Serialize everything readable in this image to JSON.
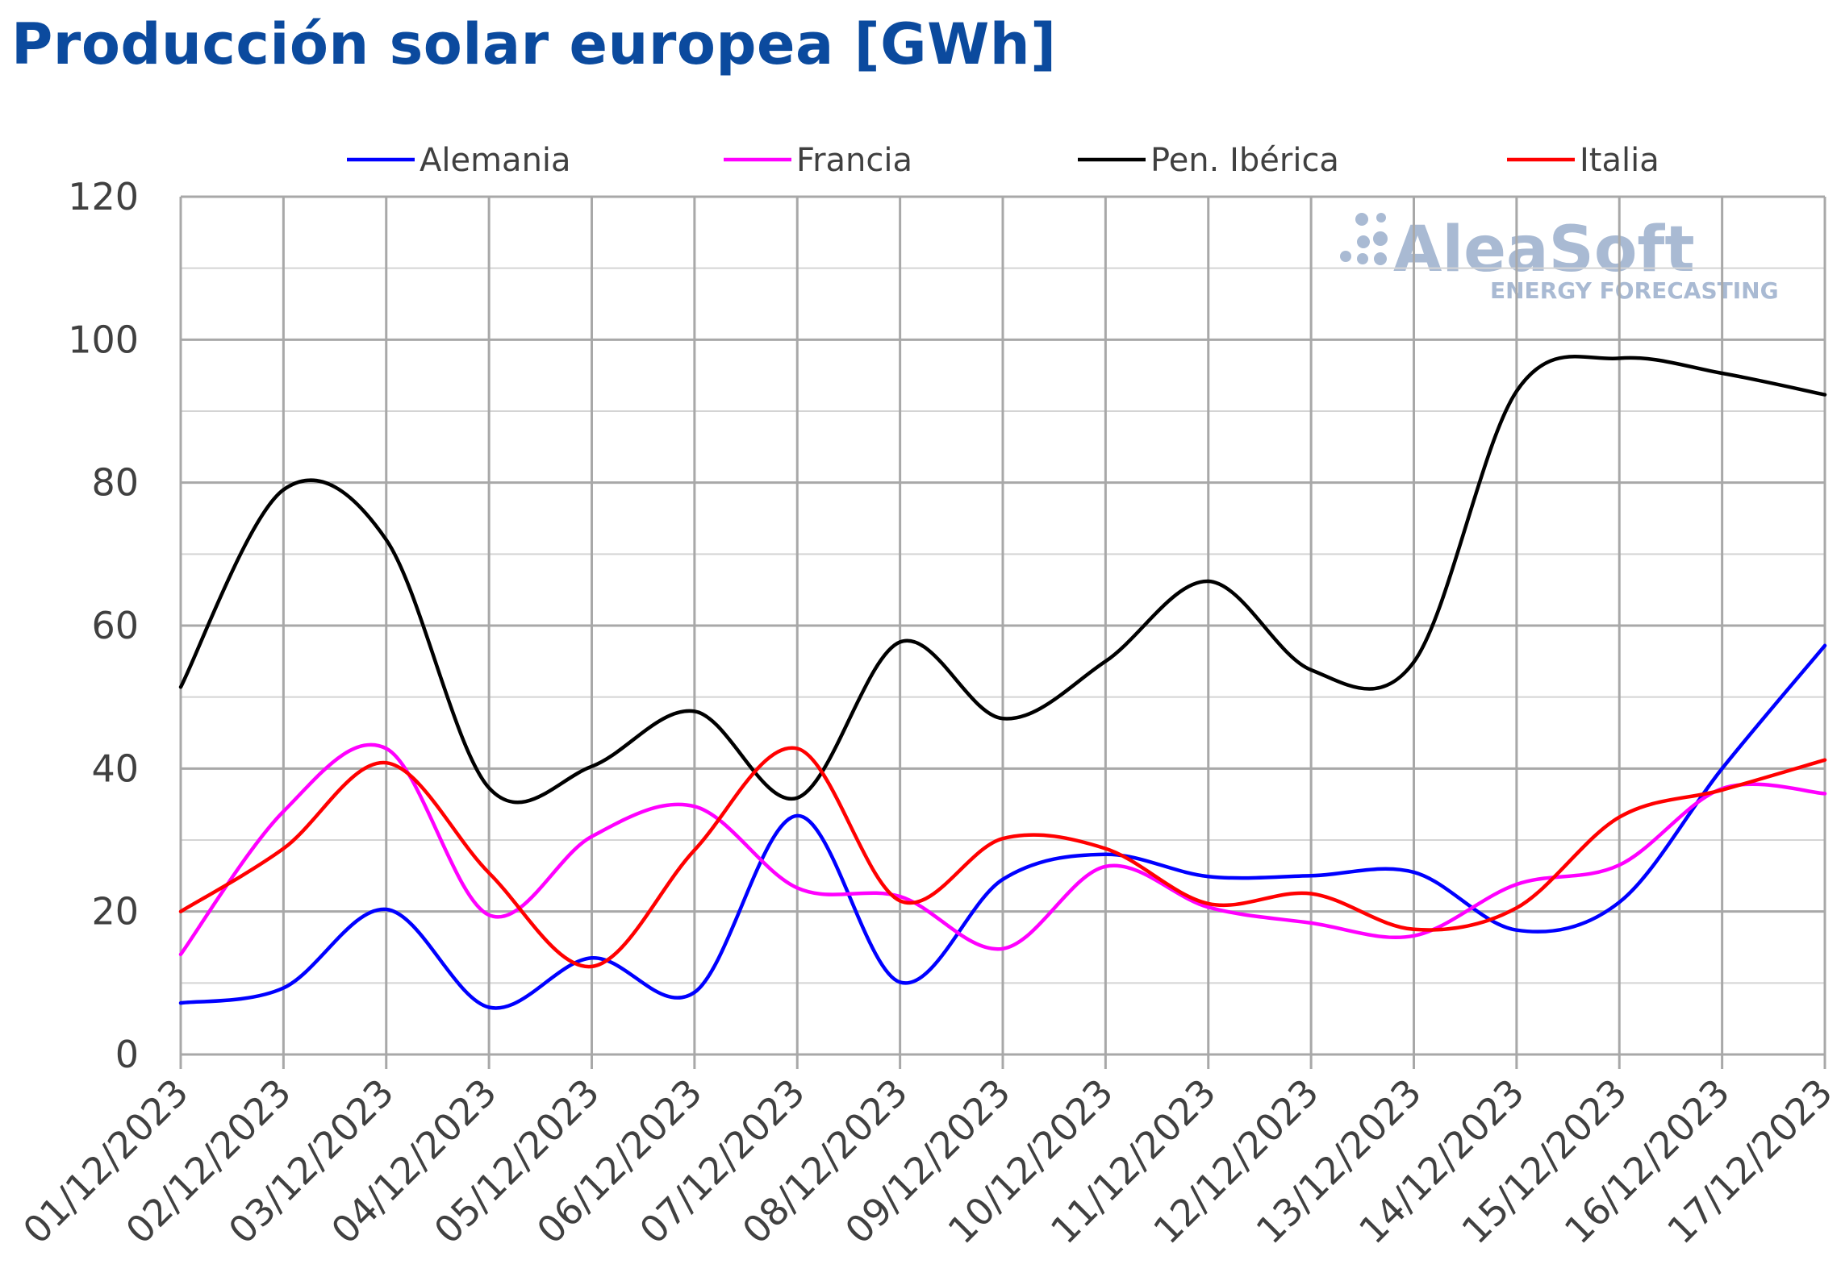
{
  "chart_data": {
    "type": "line",
    "title": "Producción solar europea [GWh]",
    "xlabel": "",
    "ylabel": "",
    "ylim": [
      0,
      120
    ],
    "yticks": [
      0,
      20,
      40,
      60,
      80,
      100,
      120
    ],
    "grid": true,
    "legend_position": "top",
    "categories": [
      "01/12/2023",
      "02/12/2023",
      "03/12/2023",
      "04/12/2023",
      "05/12/2023",
      "06/12/2023",
      "07/12/2023",
      "08/12/2023",
      "09/12/2023",
      "10/12/2023",
      "11/12/2023",
      "12/12/2023",
      "13/12/2023",
      "14/12/2023",
      "15/12/2023",
      "16/12/2023",
      "17/12/2023"
    ],
    "series": [
      {
        "name": "Alemania",
        "color": "#0000ff",
        "values": [
          7.2,
          9.3,
          20.3,
          6.6,
          13.5,
          8.7,
          33.4,
          10.1,
          24.5,
          28.0,
          24.9,
          25.0,
          25.5,
          17.4,
          21.3,
          40.0,
          57.2
        ]
      },
      {
        "name": "Francia",
        "color": "#ff00ff",
        "values": [
          14.0,
          34.0,
          42.8,
          19.5,
          30.5,
          34.7,
          23.3,
          22.1,
          14.8,
          26.3,
          20.6,
          18.4,
          16.6,
          23.8,
          26.5,
          37.2,
          36.5
        ]
      },
      {
        "name": "Pen. Ibérica",
        "color": "#000000",
        "values": [
          51.4,
          79.0,
          72.0,
          37.3,
          40.3,
          48.0,
          35.9,
          57.7,
          47.0,
          55.0,
          66.2,
          53.8,
          54.9,
          92.8,
          97.4,
          95.3,
          92.3
        ]
      },
      {
        "name": "Italia",
        "color": "#ff0000",
        "values": [
          20.0,
          28.8,
          40.8,
          25.4,
          12.3,
          28.6,
          42.8,
          21.5,
          30.2,
          28.8,
          21.1,
          22.5,
          17.5,
          20.5,
          33.2,
          37.0,
          41.2
        ]
      }
    ]
  },
  "watermark": {
    "brand": "AleaSoft",
    "tagline": "ENERGY FORECASTING"
  }
}
